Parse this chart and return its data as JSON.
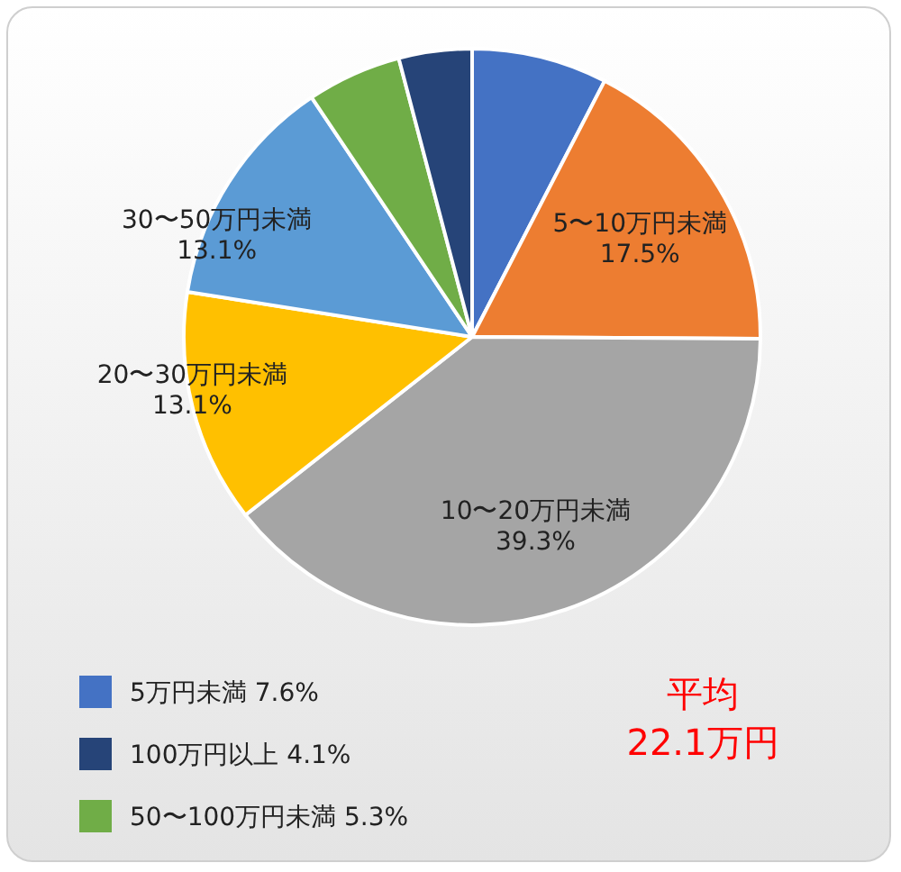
{
  "chart_data": {
    "type": "pie",
    "categories": [
      "5万円未満",
      "5〜10万円未満",
      "10〜20万円未満",
      "20〜30万円未満",
      "30〜50万円未満",
      "50〜100万円未満",
      "100万円以上"
    ],
    "values": [
      7.6,
      17.5,
      39.3,
      13.1,
      13.1,
      5.3,
      4.1
    ],
    "value_labels": [
      "7.6%",
      "17.5%",
      "39.3%",
      "13.1%",
      "13.1%",
      "5.3%",
      "4.1%"
    ],
    "colors": [
      "#4472c4",
      "#ed7d31",
      "#a5a5a5",
      "#ffc000",
      "#5b9bd5",
      "#70ad47",
      "#264478"
    ],
    "legend": "bottom left",
    "annotations": [
      "平均",
      "22.1万円"
    ]
  }
}
